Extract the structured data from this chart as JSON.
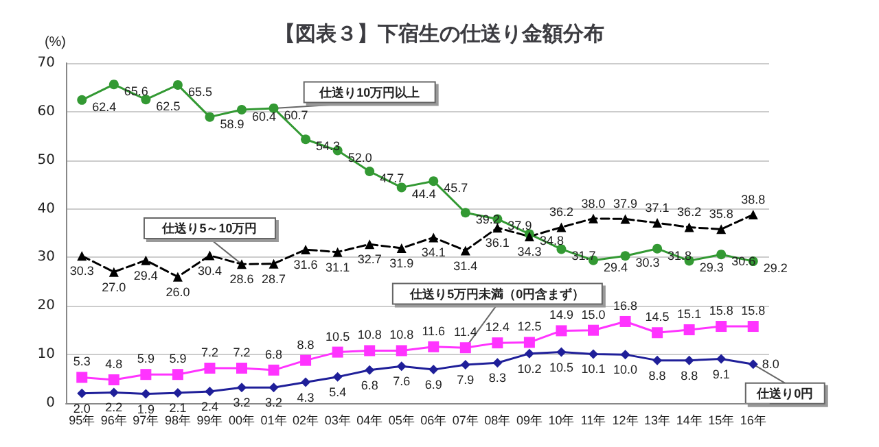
{
  "chart_data": {
    "type": "line",
    "title": "【図表３】下宿生の仕送り金額分布",
    "ylabel": "(%)",
    "categories": [
      "95年",
      "96年",
      "97年",
      "98年",
      "99年",
      "00年",
      "01年",
      "02年",
      "03年",
      "04年",
      "05年",
      "06年",
      "07年",
      "08年",
      "09年",
      "10年",
      "11年",
      "12年",
      "13年",
      "14年",
      "15年",
      "16年"
    ],
    "series": [
      {
        "name": "仕送り10万円以上",
        "color": "#339933",
        "marker": "circle",
        "line_style": "solid",
        "values": [
          62.4,
          65.6,
          62.5,
          65.5,
          58.9,
          60.4,
          60.7,
          54.3,
          52.0,
          47.7,
          44.4,
          45.7,
          39.2,
          37.9,
          34.8,
          31.7,
          29.4,
          30.3,
          31.8,
          29.3,
          30.6,
          29.2
        ],
        "value_labels": [
          "62.4",
          "65.6",
          "62.5",
          "65.5",
          "58.9",
          "60.4",
          "60.7",
          "54.3",
          "52.0",
          "47.7",
          "44.4",
          "45.7",
          "39.2",
          "37.9",
          "34.8",
          "31.7",
          "29.4",
          "30.3",
          "31.8",
          "29.3",
          "30.6",
          "29.2"
        ]
      },
      {
        "name": "仕送り5～10万円",
        "color": "#000000",
        "marker": "triangle",
        "line_style": "dashed",
        "values": [
          30.3,
          27.0,
          29.4,
          26.0,
          30.4,
          28.6,
          28.7,
          31.6,
          31.1,
          32.7,
          31.9,
          34.1,
          31.4,
          36.1,
          34.3,
          36.2,
          38.0,
          37.9,
          37.1,
          36.2,
          35.8,
          38.8
        ],
        "value_labels": [
          "30.3",
          "27.0",
          "29.4",
          "26.0",
          "30.4",
          "28.6",
          "28.7",
          "31.6",
          "31.1",
          "32.7",
          "31.9",
          "34.1",
          "31.4",
          "36.1",
          "34.3",
          "36.2",
          "38.0",
          "37.9",
          "37.1",
          "36.2",
          "35.8",
          "38.8"
        ]
      },
      {
        "name": "仕送り5万円未満（0円含まず）",
        "color": "#ff33ff",
        "marker": "square",
        "line_style": "solid",
        "values": [
          5.3,
          4.8,
          5.9,
          5.9,
          7.2,
          7.2,
          6.8,
          8.8,
          10.5,
          10.8,
          10.8,
          11.6,
          11.4,
          12.4,
          12.5,
          14.9,
          15.0,
          16.8,
          14.5,
          15.1,
          15.8,
          15.8
        ],
        "value_labels": [
          "5.3",
          "4.8",
          "5.9",
          "5.9",
          "7.2",
          "7.2",
          "6.8",
          "8.8",
          "10.5",
          "10.8",
          "10.8",
          "11.6",
          "11.4",
          "12.4",
          "12.5",
          "14.9",
          "15.0",
          "16.8",
          "14.5",
          "15.1",
          "15.8",
          "15.8"
        ]
      },
      {
        "name": "仕送り0円",
        "color": "#1f1f99",
        "marker": "diamond",
        "line_style": "solid",
        "values": [
          2.0,
          2.2,
          1.9,
          2.1,
          2.4,
          3.2,
          3.2,
          4.3,
          5.4,
          6.8,
          7.6,
          6.9,
          7.9,
          8.3,
          10.2,
          10.5,
          10.1,
          10.0,
          8.8,
          8.8,
          9.1,
          8.0
        ],
        "value_labels": [
          "2.0",
          "2.2",
          "1.9",
          "2.1",
          "2.4",
          "3.2",
          "3.2",
          "4.3",
          "5.4",
          "6.8",
          "7.6",
          "6.9",
          "7.9",
          "8.3",
          "10.2",
          "10.5",
          "10.1",
          "10.0",
          "8.8",
          "8.8",
          "9.1",
          "8.0"
        ]
      }
    ],
    "ylim": [
      0,
      70
    ],
    "yticks": [
      0,
      10,
      20,
      30,
      40,
      50,
      60,
      70
    ],
    "grid": "y",
    "legend": false
  }
}
